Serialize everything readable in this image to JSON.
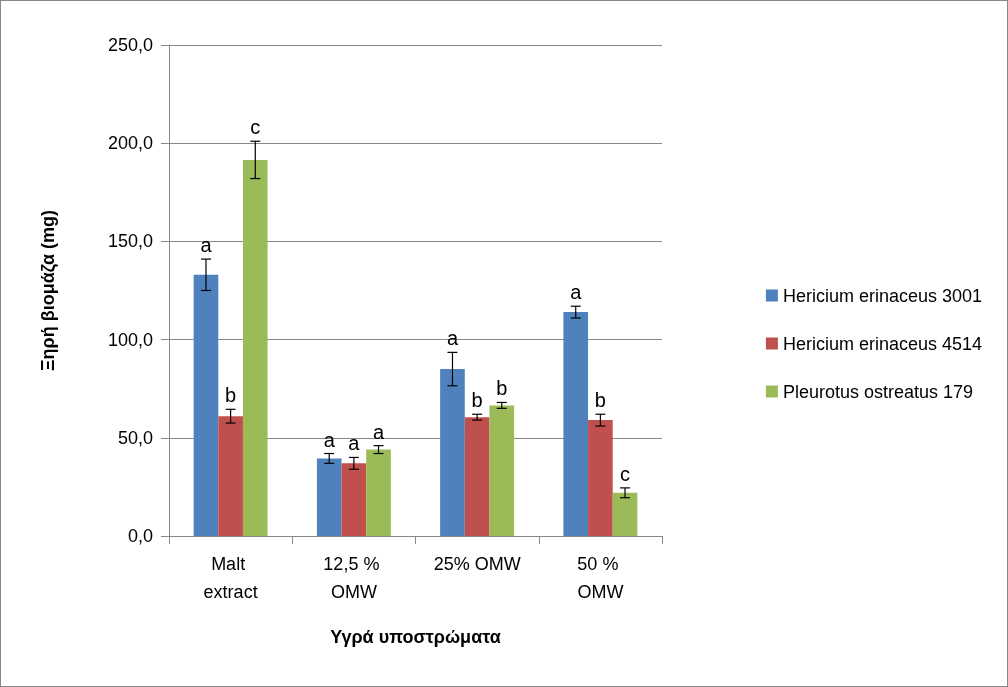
{
  "chart_data": {
    "type": "bar",
    "xlabel": "Υγρά υποστρώματα",
    "ylabel": "Ξηρή βιομάζα (mg)",
    "categories": [
      "Malt extract",
      "12,5 % OMW",
      "25% OMW",
      "50 % OMW"
    ],
    "series": [
      {
        "name": "Hericium erinaceus 3001",
        "color": "#4f81bd",
        "values": [
          133,
          39.5,
          85,
          114
        ],
        "errors": [
          8,
          2.5,
          8.5,
          3
        ]
      },
      {
        "name": "Hericium erinaceus 4514",
        "color": "#c0504d",
        "values": [
          61,
          37,
          60.5,
          59
        ],
        "errors": [
          3.5,
          3,
          1.5,
          3
        ]
      },
      {
        "name": "Pleurotus ostreatus 179",
        "color": "#9bbb59",
        "values": [
          191.5,
          44,
          66.5,
          22
        ],
        "errors": [
          9.5,
          2,
          1.5,
          2.5
        ]
      }
    ],
    "ylim": [
      0,
      250
    ],
    "yticks": [
      {
        "value": 0,
        "label": "0,0"
      },
      {
        "value": 50,
        "label": "50,0"
      },
      {
        "value": 100,
        "label": "100,0"
      },
      {
        "value": 150,
        "label": "150,0"
      },
      {
        "value": 200,
        "label": "200,0"
      },
      {
        "value": 250,
        "label": "250,0"
      }
    ],
    "grid": "y",
    "legend": "right",
    "annotations": [
      "a",
      "b",
      "c",
      "a",
      "a",
      "a",
      "a",
      "b",
      "b",
      "a",
      "b",
      "c"
    ]
  }
}
